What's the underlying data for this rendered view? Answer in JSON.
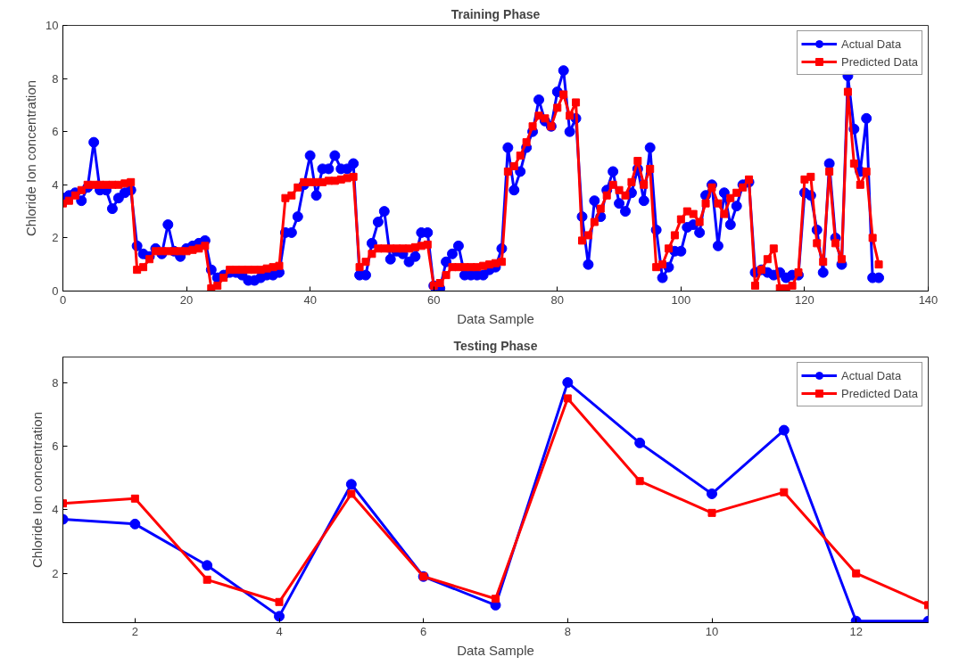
{
  "chart_data": [
    {
      "type": "line",
      "title": "Training Phase",
      "xlabel": "Data Sample",
      "ylabel": "Chloride Ion concentration",
      "x": [
        0,
        1,
        2,
        3,
        4,
        5,
        6,
        7,
        8,
        9,
        10,
        11,
        12,
        13,
        14,
        15,
        16,
        17,
        18,
        19,
        20,
        21,
        22,
        23,
        24,
        25,
        26,
        27,
        28,
        29,
        30,
        31,
        32,
        33,
        34,
        35,
        36,
        37,
        38,
        39,
        40,
        41,
        42,
        43,
        44,
        45,
        46,
        47,
        48,
        49,
        50,
        51,
        52,
        53,
        54,
        55,
        56,
        57,
        58,
        59,
        60,
        61,
        62,
        63,
        64,
        65,
        66,
        67,
        68,
        69,
        70,
        71,
        72,
        73,
        74,
        75,
        76,
        77,
        78,
        79,
        80,
        81,
        82,
        83,
        84,
        85,
        86,
        87,
        88,
        89,
        90,
        91,
        92,
        93,
        94,
        95,
        96,
        97,
        98,
        99,
        100,
        101,
        102,
        103,
        104,
        105,
        106,
        107,
        108,
        109,
        110,
        111,
        112,
        113,
        114,
        115,
        116,
        117,
        118,
        119,
        120,
        121,
        122,
        123,
        124,
        125,
        126,
        127,
        128,
        129,
        130,
        131,
        132
      ],
      "series": [
        {
          "name": "Actual Data",
          "color": "#0000ff",
          "marker": "circle",
          "values": [
            3.5,
            3.6,
            3.7,
            3.4,
            3.9,
            5.6,
            3.8,
            3.8,
            3.1,
            3.5,
            3.7,
            3.8,
            1.7,
            1.4,
            1.3,
            1.6,
            1.4,
            2.5,
            1.5,
            1.3,
            1.6,
            1.7,
            1.8,
            1.9,
            0.8,
            0.5,
            0.6,
            0.7,
            0.7,
            0.6,
            0.4,
            0.4,
            0.5,
            0.6,
            0.6,
            0.7,
            2.2,
            2.2,
            2.8,
            4.0,
            5.1,
            3.6,
            4.6,
            4.6,
            5.1,
            4.6,
            4.6,
            4.8,
            0.6,
            0.6,
            1.8,
            2.6,
            3.0,
            1.2,
            1.5,
            1.4,
            1.1,
            1.3,
            2.2,
            2.2,
            0.2,
            0.1,
            1.1,
            1.4,
            1.7,
            0.6,
            0.6,
            0.6,
            0.6,
            0.8,
            0.9,
            1.6,
            5.4,
            3.8,
            4.5,
            5.4,
            6.0,
            7.2,
            6.4,
            6.2,
            7.5,
            8.3,
            6.0,
            6.5,
            2.8,
            1.0,
            3.4,
            2.8,
            3.8,
            4.5,
            3.3,
            3.0,
            3.7,
            4.6,
            3.4,
            5.4,
            2.3,
            0.5,
            0.9,
            1.5,
            1.5,
            2.4,
            2.5,
            2.2,
            3.6,
            4.0,
            1.7,
            3.7,
            2.5,
            3.2,
            4.0,
            4.1,
            0.7,
            0.8,
            0.7,
            0.6,
            0.7,
            0.5,
            0.6,
            0.6,
            3.7,
            3.6,
            2.3,
            0.7,
            4.8,
            2.0,
            1.0,
            8.1,
            6.1,
            4.5,
            6.5,
            0.5,
            0.5
          ]
        },
        {
          "name": "Predicted Data",
          "color": "#ff0000",
          "marker": "square",
          "values": [
            3.3,
            3.4,
            3.6,
            3.8,
            4.0,
            4.0,
            4.0,
            4.0,
            4.0,
            4.0,
            4.05,
            4.1,
            0.8,
            0.9,
            1.2,
            1.5,
            1.5,
            1.5,
            1.5,
            1.5,
            1.5,
            1.55,
            1.6,
            1.7,
            0.1,
            0.2,
            0.5,
            0.8,
            0.8,
            0.8,
            0.8,
            0.8,
            0.8,
            0.85,
            0.9,
            0.95,
            3.5,
            3.6,
            3.9,
            4.1,
            4.1,
            4.1,
            4.1,
            4.15,
            4.15,
            4.2,
            4.25,
            4.3,
            0.9,
            1.1,
            1.4,
            1.6,
            1.6,
            1.6,
            1.6,
            1.6,
            1.6,
            1.65,
            1.7,
            1.75,
            0.2,
            0.3,
            0.6,
            0.9,
            0.9,
            0.9,
            0.9,
            0.9,
            0.95,
            1.0,
            1.05,
            1.1,
            4.5,
            4.7,
            5.1,
            5.6,
            6.2,
            6.6,
            6.5,
            6.2,
            6.9,
            7.4,
            6.6,
            7.1,
            1.9,
            2.1,
            2.6,
            3.1,
            3.6,
            4.0,
            3.8,
            3.6,
            4.1,
            4.9,
            4.0,
            4.6,
            0.9,
            1.0,
            1.6,
            2.1,
            2.7,
            3.0,
            2.9,
            2.6,
            3.3,
            3.9,
            3.3,
            2.9,
            3.5,
            3.7,
            3.9,
            4.2,
            0.2,
            0.8,
            1.2,
            1.6,
            0.1,
            0.1,
            0.2,
            0.7,
            4.2,
            4.3,
            1.8,
            1.1,
            4.5,
            1.8,
            1.2,
            7.5,
            4.8,
            4.0,
            4.5,
            2.0,
            1.0
          ]
        }
      ],
      "xlim": [
        0,
        140
      ],
      "xticks": [
        0,
        20,
        40,
        60,
        80,
        100,
        120,
        140
      ],
      "ylim": [
        0,
        10
      ],
      "yticks": [
        0,
        2,
        4,
        6,
        8,
        10
      ],
      "grid": false,
      "legend": "top right",
      "line_style": "solid"
    },
    {
      "type": "line",
      "title": "Testing Phase",
      "xlabel": "Data Sample",
      "ylabel": "Chloride Ion concentration",
      "x": [
        1,
        2,
        3,
        4,
        5,
        6,
        7,
        8,
        9,
        10,
        11,
        12,
        13
      ],
      "series": [
        {
          "name": "Actual Data",
          "color": "#0000ff",
          "marker": "circle",
          "values": [
            3.7,
            3.55,
            2.25,
            0.65,
            4.8,
            1.9,
            1.0,
            8.0,
            6.1,
            4.5,
            6.5,
            0.5,
            0.5
          ]
        },
        {
          "name": "Predicted Data",
          "color": "#ff0000",
          "marker": "square",
          "values": [
            4.2,
            4.35,
            1.8,
            1.1,
            4.5,
            1.9,
            1.2,
            7.5,
            4.9,
            3.9,
            4.55,
            2.0,
            1.0
          ]
        }
      ],
      "xlim": [
        1,
        13
      ],
      "xticks": [
        2,
        4,
        6,
        8,
        10,
        12
      ],
      "ylim": [
        0.45,
        8.8
      ],
      "yticks": [
        2,
        4,
        6,
        8
      ],
      "grid": false,
      "legend": "top right",
      "line_style": "solid"
    }
  ]
}
